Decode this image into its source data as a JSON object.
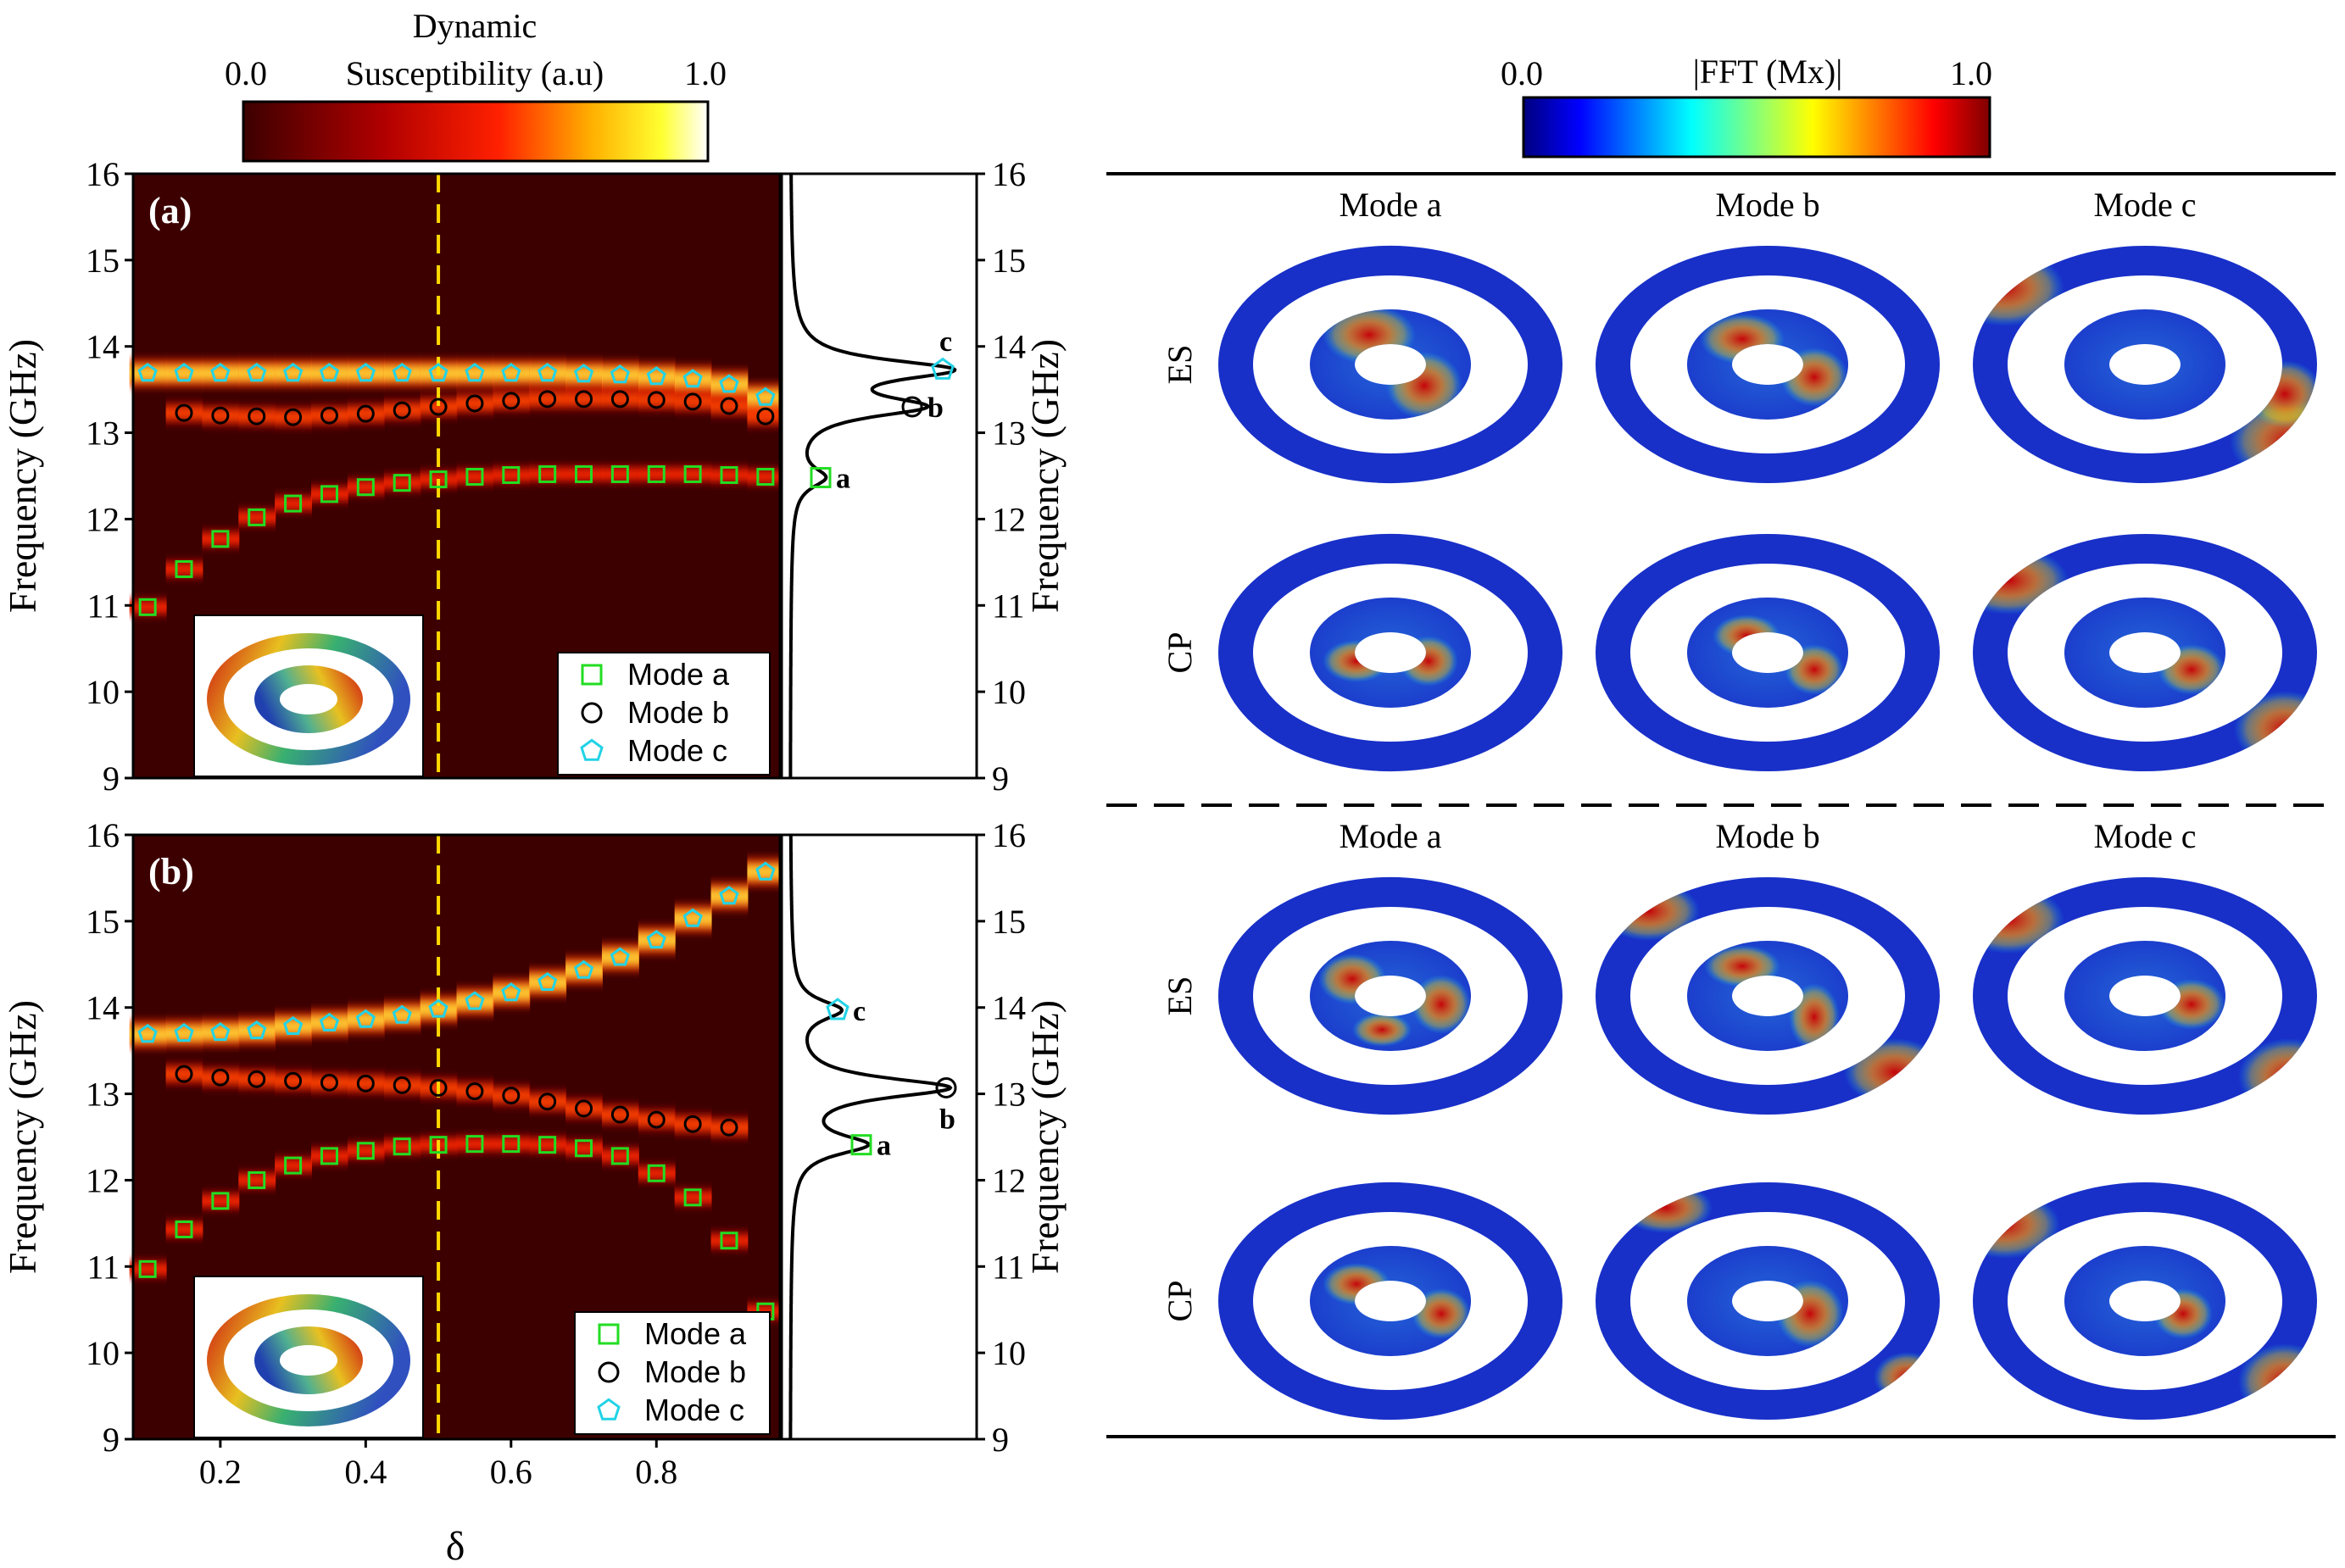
{
  "colors": {
    "heat_bg": "#3c0000",
    "mode_a": "#22dd22",
    "mode_b": "#000000",
    "mode_c": "#22d3e6",
    "dashed_line": "#ffd700",
    "jet_low": "#00007f",
    "jet_high": "#7f0000"
  },
  "colorbar_left": {
    "title_line1": "Dynamic",
    "title_line2": "Susceptibility (a.u)",
    "min_label": "0.0",
    "max_label": "1.0"
  },
  "colorbar_right": {
    "title": "|FFT (Mx)|",
    "min_label": "0.0",
    "max_label": "1.0"
  },
  "chart_data": [
    {
      "type": "heatmap",
      "panel_label": "(a)",
      "ylabel": "Frequency (GHz)",
      "xlabel": "δ",
      "xlim": [
        0.08,
        0.97
      ],
      "ylim": [
        9,
        16
      ],
      "yticks": [
        "9",
        "10",
        "11",
        "12",
        "13",
        "14",
        "15",
        "16"
      ],
      "xticks": [],
      "vline_x": 0.5,
      "series": [
        {
          "name": "Mode a",
          "marker": "square",
          "x": [
            0.1,
            0.15,
            0.2,
            0.25,
            0.3,
            0.35,
            0.4,
            0.45,
            0.5,
            0.55,
            0.6,
            0.65,
            0.7,
            0.75,
            0.8,
            0.85,
            0.9,
            0.95
          ],
          "values": [
            10.98,
            11.42,
            11.77,
            12.02,
            12.18,
            12.29,
            12.37,
            12.42,
            12.46,
            12.49,
            12.51,
            12.52,
            12.52,
            12.52,
            12.52,
            12.52,
            12.51,
            12.49
          ]
        },
        {
          "name": "Mode b",
          "marker": "circle",
          "x": [
            0.15,
            0.2,
            0.25,
            0.3,
            0.35,
            0.4,
            0.45,
            0.5,
            0.55,
            0.6,
            0.65,
            0.7,
            0.75,
            0.8,
            0.85,
            0.9,
            0.95
          ],
          "values": [
            13.23,
            13.2,
            13.19,
            13.18,
            13.2,
            13.22,
            13.26,
            13.3,
            13.34,
            13.37,
            13.39,
            13.39,
            13.39,
            13.38,
            13.36,
            13.31,
            13.19
          ]
        },
        {
          "name": "Mode c",
          "marker": "pentagon",
          "x": [
            0.1,
            0.15,
            0.2,
            0.25,
            0.3,
            0.35,
            0.4,
            0.45,
            0.5,
            0.55,
            0.6,
            0.65,
            0.7,
            0.75,
            0.8,
            0.85,
            0.9,
            0.95
          ],
          "values": [
            13.69,
            13.69,
            13.69,
            13.69,
            13.69,
            13.69,
            13.69,
            13.69,
            13.69,
            13.69,
            13.69,
            13.69,
            13.68,
            13.67,
            13.65,
            13.62,
            13.56,
            13.41
          ]
        }
      ],
      "legend": {
        "position": "bottom-right",
        "entries": [
          "Mode a",
          "Mode b",
          "Mode c"
        ]
      },
      "side_spectrum": {
        "ylabel": "Frequency (GHz)",
        "yticks": [
          "9",
          "10",
          "11",
          "12",
          "13",
          "14",
          "15",
          "16"
        ],
        "peaks": [
          {
            "label": "a",
            "freq": 12.48,
            "amp": 0.18
          },
          {
            "label": "b",
            "freq": 13.3,
            "amp": 0.72
          },
          {
            "label": "c",
            "freq": 13.73,
            "amp": 0.9
          }
        ]
      }
    },
    {
      "type": "heatmap",
      "panel_label": "(b)",
      "ylabel": "Frequency (GHz)",
      "xlabel": "δ",
      "xlim": [
        0.08,
        0.97
      ],
      "ylim": [
        9,
        16
      ],
      "yticks": [
        "9",
        "10",
        "11",
        "12",
        "13",
        "14",
        "15",
        "16"
      ],
      "xticks": [
        "0.2",
        "0.4",
        "0.6",
        "0.8"
      ],
      "vline_x": 0.5,
      "series": [
        {
          "name": "Mode a",
          "marker": "square",
          "x": [
            0.1,
            0.15,
            0.2,
            0.25,
            0.3,
            0.35,
            0.4,
            0.45,
            0.5,
            0.55,
            0.6,
            0.65,
            0.7,
            0.75,
            0.8,
            0.85,
            0.9,
            0.95
          ],
          "values": [
            10.97,
            11.43,
            11.76,
            12.0,
            12.17,
            12.28,
            12.34,
            12.39,
            12.41,
            12.42,
            12.42,
            12.41,
            12.37,
            12.28,
            12.08,
            11.8,
            11.3,
            10.48
          ]
        },
        {
          "name": "Mode b",
          "marker": "circle",
          "x": [
            0.15,
            0.2,
            0.25,
            0.3,
            0.35,
            0.4,
            0.45,
            0.5,
            0.55,
            0.6,
            0.65,
            0.7,
            0.75,
            0.8,
            0.85,
            0.9
          ],
          "values": [
            13.23,
            13.19,
            13.17,
            13.15,
            13.13,
            13.12,
            13.1,
            13.07,
            13.03,
            12.98,
            12.91,
            12.83,
            12.76,
            12.7,
            12.65,
            12.61
          ]
        },
        {
          "name": "Mode c",
          "marker": "pentagon",
          "x": [
            0.1,
            0.15,
            0.2,
            0.25,
            0.3,
            0.35,
            0.4,
            0.45,
            0.5,
            0.55,
            0.6,
            0.65,
            0.7,
            0.75,
            0.8,
            0.85,
            0.9,
            0.95
          ],
          "values": [
            13.69,
            13.7,
            13.71,
            13.73,
            13.78,
            13.82,
            13.86,
            13.91,
            13.98,
            14.07,
            14.17,
            14.29,
            14.43,
            14.58,
            14.78,
            15.03,
            15.29,
            15.57
          ]
        }
      ],
      "legend": {
        "position": "bottom-right",
        "entries": [
          "Mode a",
          "Mode b",
          "Mode c"
        ]
      },
      "side_spectrum": {
        "ylabel": "Frequency (GHz)",
        "yticks": [
          "9",
          "10",
          "11",
          "12",
          "13",
          "14",
          "15",
          "16"
        ],
        "peaks": [
          {
            "label": "a",
            "freq": 12.41,
            "amp": 0.42
          },
          {
            "label": "b",
            "freq": 13.07,
            "amp": 0.92
          },
          {
            "label": "c",
            "freq": 13.97,
            "amp": 0.28
          }
        ]
      }
    }
  ],
  "mode_maps": {
    "column_titles": [
      "Mode a",
      "Mode b",
      "Mode c"
    ],
    "row_labels": [
      "ES",
      "CP",
      "ES",
      "CP"
    ]
  }
}
